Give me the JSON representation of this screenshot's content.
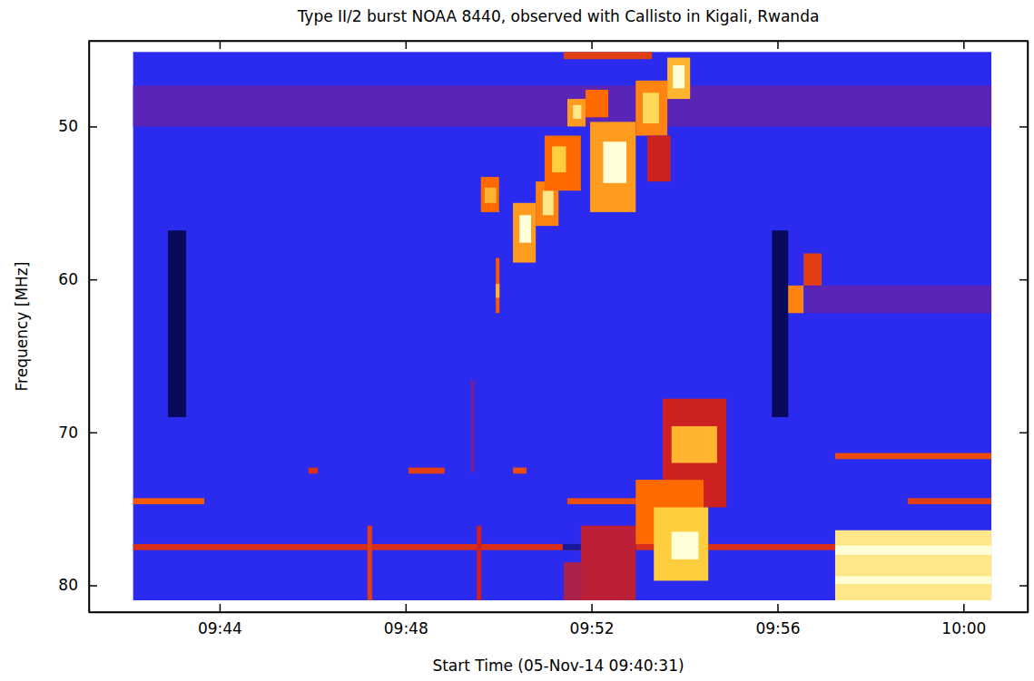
{
  "chart_data": {
    "type": "heatmap",
    "title": "Type II/2 burst NOAA 8440, observed with Callisto in Kigali, Rwanda",
    "xlabel": "Start Time (05-Nov-14 09:40:31)",
    "ylabel": "Frequency [MHz]",
    "xlim": [
      41.19,
      61.38
    ],
    "ylim": [
      44.4,
      81.75
    ],
    "xticks": [
      {
        "value": 44,
        "label": "09:44"
      },
      {
        "value": 48,
        "label": "09:48"
      },
      {
        "value": 52,
        "label": "09:52"
      },
      {
        "value": 56,
        "label": "09:56"
      },
      {
        "value": 60,
        "label": "10:00"
      }
    ],
    "yticks": [
      50,
      60,
      70,
      80
    ],
    "zlim": [
      -20,
      100
    ],
    "cells": [
      [
        42.14,
        60.6,
        45.13,
        80.98,
        0
      ],
      [
        42.14,
        60.6,
        47.33,
        50.0,
        12
      ],
      [
        56.6,
        60.6,
        60.4,
        62.2,
        12
      ],
      [
        42.89,
        43.28,
        56.8,
        69.0,
        -18
      ],
      [
        55.88,
        56.23,
        56.8,
        69.0,
        -18
      ],
      [
        42.14,
        57.24,
        77.3,
        77.7,
        50
      ],
      [
        51.38,
        52.95,
        77.3,
        77.7,
        -10
      ],
      [
        42.14,
        43.67,
        74.3,
        74.7,
        65
      ],
      [
        51.48,
        53.34,
        74.3,
        74.7,
        60
      ],
      [
        58.8,
        60.6,
        74.3,
        74.7,
        55
      ],
      [
        48.06,
        48.84,
        72.3,
        72.7,
        55
      ],
      [
        50.31,
        50.6,
        72.3,
        72.7,
        60
      ],
      [
        45.91,
        46.11,
        72.3,
        72.7,
        50
      ],
      [
        57.24,
        60.6,
        71.35,
        71.75,
        60
      ],
      [
        47.18,
        47.28,
        76.1,
        80.98,
        55
      ],
      [
        49.53,
        49.63,
        76.1,
        80.98,
        45
      ],
      [
        49.94,
        50.02,
        58.6,
        62.2,
        65
      ],
      [
        49.94,
        50.02,
        60.3,
        61.2,
        85
      ],
      [
        49.39,
        49.49,
        66.6,
        72.6,
        15
      ],
      [
        49.62,
        50.01,
        53.3,
        55.6,
        70
      ],
      [
        49.7,
        49.95,
        54.0,
        55.0,
        85
      ],
      [
        50.31,
        50.8,
        55.0,
        58.9,
        80
      ],
      [
        50.45,
        50.7,
        55.8,
        57.6,
        100
      ],
      [
        50.8,
        51.29,
        53.6,
        56.5,
        75
      ],
      [
        50.95,
        51.18,
        54.2,
        55.8,
        95
      ],
      [
        50.99,
        51.77,
        50.6,
        54.2,
        70
      ],
      [
        51.15,
        51.45,
        51.3,
        53.0,
        90
      ],
      [
        51.48,
        51.87,
        48.2,
        50.0,
        80
      ],
      [
        51.6,
        51.78,
        48.6,
        49.5,
        95
      ],
      [
        51.87,
        52.36,
        47.6,
        49.4,
        70
      ],
      [
        51.97,
        52.95,
        49.7,
        55.6,
        80
      ],
      [
        52.25,
        52.75,
        51.0,
        53.7,
        100
      ],
      [
        52.95,
        53.63,
        47.0,
        50.6,
        75
      ],
      [
        53.1,
        53.45,
        47.8,
        49.8,
        92
      ],
      [
        53.63,
        54.12,
        45.5,
        48.2,
        85
      ],
      [
        53.75,
        54.0,
        46.0,
        47.5,
        100
      ],
      [
        53.2,
        53.7,
        50.6,
        53.6,
        45
      ],
      [
        51.4,
        53.3,
        45.13,
        45.6,
        55
      ],
      [
        51.77,
        52.95,
        76.1,
        80.98,
        40
      ],
      [
        51.4,
        51.8,
        78.5,
        80.98,
        35
      ],
      [
        53.53,
        54.9,
        67.8,
        74.9,
        45
      ],
      [
        53.72,
        54.7,
        69.6,
        72.0,
        85
      ],
      [
        52.95,
        54.41,
        73.1,
        77.3,
        70
      ],
      [
        53.34,
        54.51,
        74.9,
        79.7,
        90
      ],
      [
        53.72,
        54.3,
        76.5,
        78.3,
        100
      ],
      [
        56.23,
        56.56,
        60.4,
        62.2,
        75
      ],
      [
        56.56,
        56.95,
        58.3,
        60.4,
        55
      ],
      [
        57.24,
        60.6,
        76.4,
        80.98,
        95
      ],
      [
        57.24,
        60.6,
        77.4,
        78.0,
        100
      ],
      [
        57.24,
        60.6,
        79.4,
        79.9,
        100
      ]
    ]
  }
}
